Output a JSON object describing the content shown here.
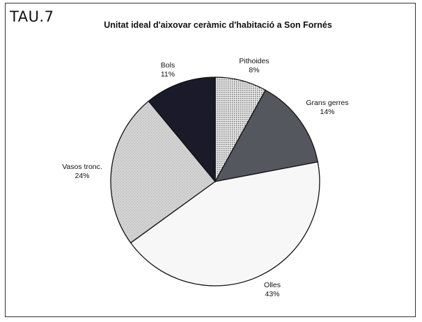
{
  "tag": "TAU.7",
  "chart_data": {
    "type": "pie",
    "title": "Unitat ideal d'aixovar ceràmic d'habitació a Son Fornés",
    "slices": [
      {
        "name": "Pithoides",
        "value": 8,
        "label": "8%",
        "color": "#c8c8c8",
        "pattern": "dots"
      },
      {
        "name": "Grans gerres",
        "value": 14,
        "label": "14%",
        "color": "#55575e"
      },
      {
        "name": "Olles",
        "value": 43,
        "label": "43%",
        "color": "#f7f7f7"
      },
      {
        "name": "Vasos tronc.",
        "value": 24,
        "label": "24%",
        "color": "#d2d2d2"
      },
      {
        "name": "Bols",
        "value": 11,
        "label": "11%",
        "color": "#1a1a2a"
      }
    ]
  }
}
